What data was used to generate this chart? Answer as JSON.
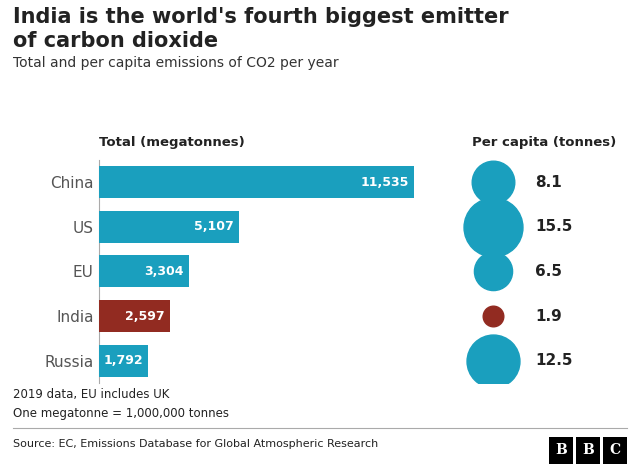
{
  "title_line1": "India is the world's fourth biggest emitter",
  "title_line2": "of carbon dioxide",
  "subtitle": "Total and per capita emissions of CO2 per year",
  "bar_label": "Total (megatonnes)",
  "bubble_label": "Per capita (tonnes)",
  "countries": [
    "China",
    "US",
    "EU",
    "India",
    "Russia"
  ],
  "totals": [
    11535,
    5107,
    3304,
    2597,
    1792
  ],
  "per_capita": [
    8.1,
    15.5,
    6.5,
    1.9,
    12.5
  ],
  "bar_colors": [
    "#1a9fbe",
    "#1a9fbe",
    "#1a9fbe",
    "#922b21",
    "#1a9fbe"
  ],
  "bubble_colors": [
    "#1a9fbe",
    "#1a9fbe",
    "#1a9fbe",
    "#922b21",
    "#1a9fbe"
  ],
  "footnote1": "2019 data, EU includes UK",
  "footnote2": "One megatonne = 1,000,000 tonnes",
  "source": "Source: EC, Emissions Database for Global Atmospheric Research",
  "bbc_label": "B B C",
  "xlim": [
    0,
    13000
  ],
  "bg_color": "#ffffff",
  "text_color": "#222222",
  "footer_bg": "#e0e0e0",
  "max_bubble_size": 1800,
  "bar_height": 0.72
}
